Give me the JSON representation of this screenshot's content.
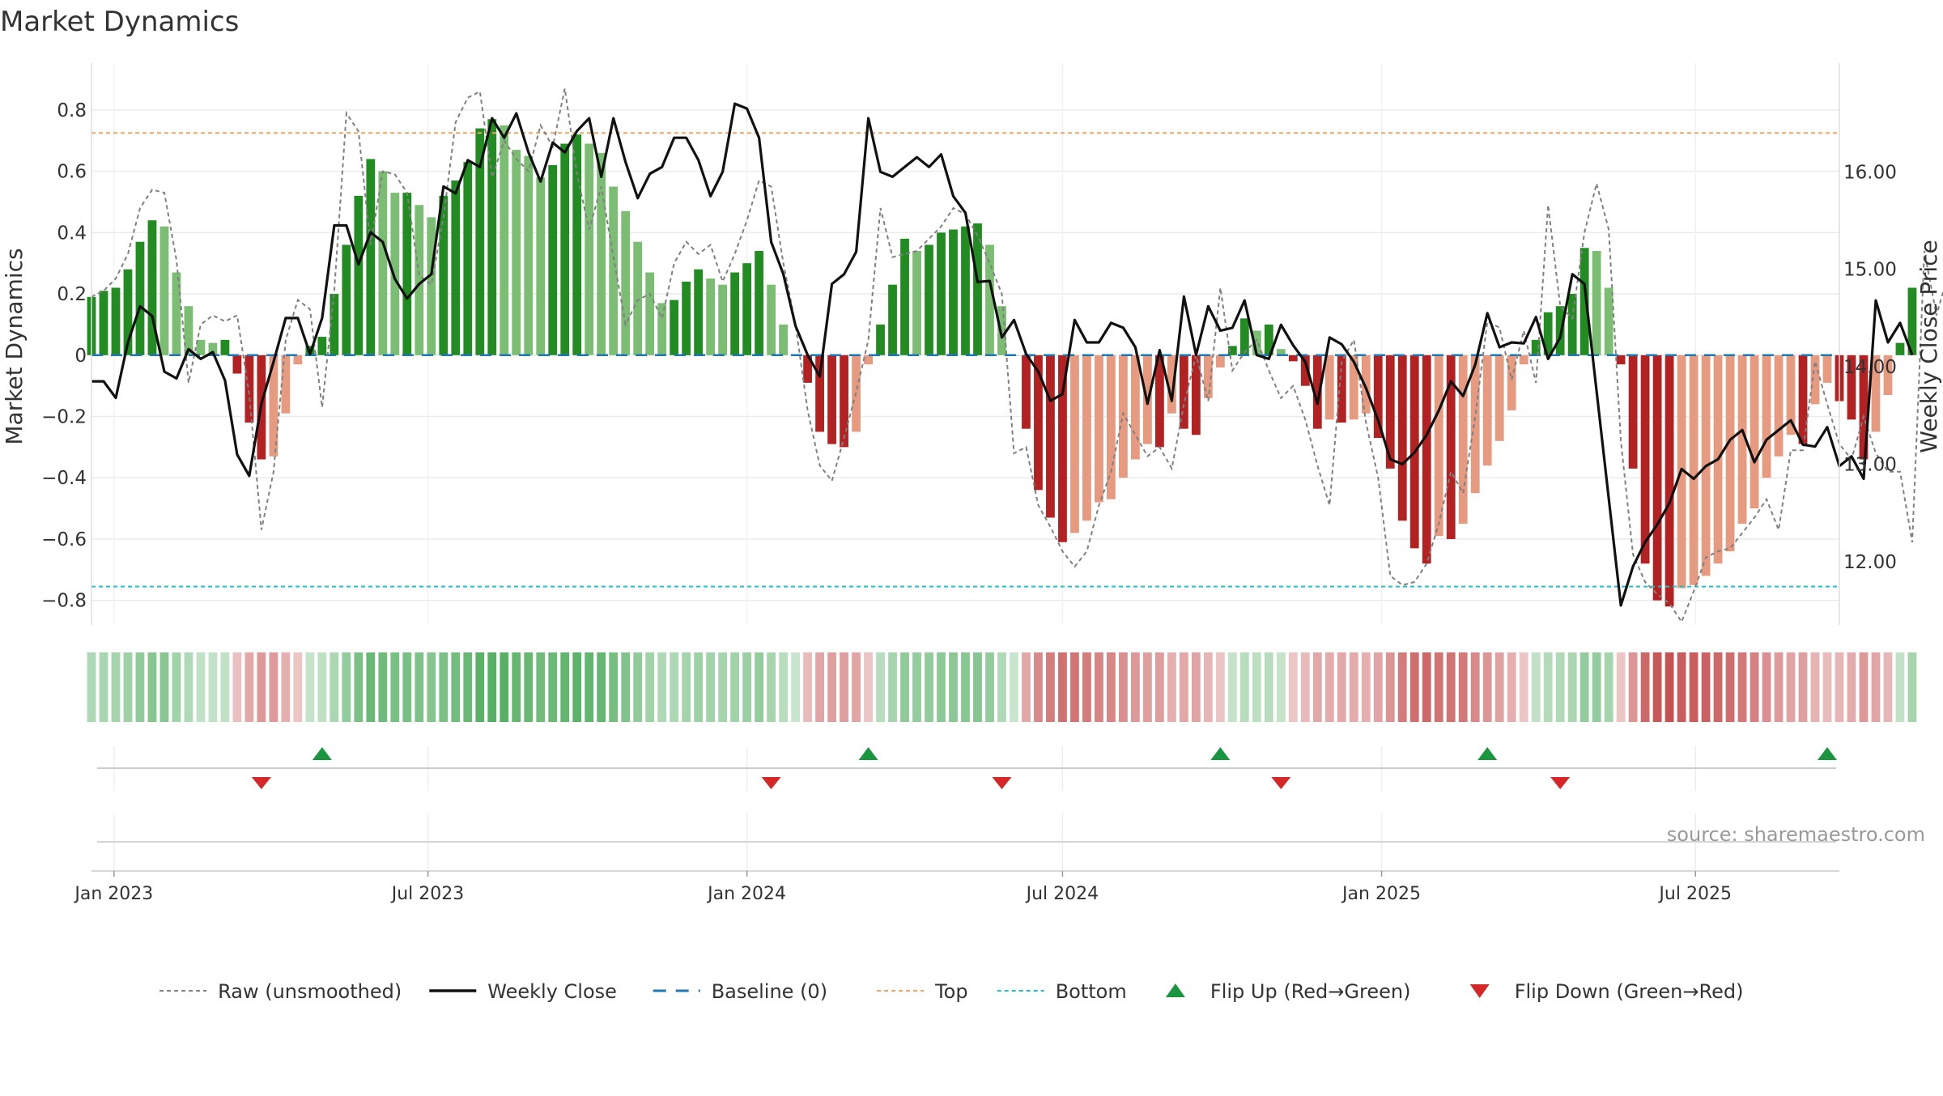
{
  "chart_data": {
    "type": "bar",
    "title": "Market Dynamics",
    "ylabel": "Market Dynamics",
    "y2label": "Weekly Close Price",
    "ylim": [
      -0.88,
      0.9
    ],
    "y2lim": [
      11.35,
      16.95
    ],
    "xlim": [
      "2022-12-19",
      "2025-09-22"
    ],
    "yticks": [
      -0.8,
      -0.6,
      -0.4,
      -0.2,
      0,
      0.2,
      0.4,
      0.6,
      0.8
    ],
    "yticklabels": [
      "−0.8",
      "−0.6",
      "−0.4",
      "−0.2",
      "0",
      "0.2",
      "0.4",
      "0.6",
      "0.8"
    ],
    "y2ticks": [
      12,
      13,
      14,
      15,
      16
    ],
    "y2ticklabels": [
      "12.00",
      "13.00",
      "14.00",
      "15.00",
      "16.00"
    ],
    "xticks": [
      "2023-01-01",
      "2023-07-01",
      "2024-01-01",
      "2024-07-01",
      "2025-01-01",
      "2025-07-01"
    ],
    "xticklabels": [
      "Jan 2023",
      "Jul 2023",
      "Jan 2024",
      "Jul 2024",
      "Jan 2025",
      "Jul 2025"
    ],
    "start_date": "2022-12-19",
    "top_level": 0.725,
    "bottom_level": -0.755,
    "baseline": 0,
    "grid": true,
    "legend_position": "bottom",
    "legend": [
      {
        "label": "Raw (unsmoothed)",
        "kind": "dashed-gray"
      },
      {
        "label": "Weekly Close",
        "kind": "solid-black"
      },
      {
        "label": "Baseline (0)",
        "kind": "dashed-blue"
      },
      {
        "label": "Top",
        "kind": "dashed-orange"
      },
      {
        "label": "Bottom",
        "kind": "dashed-cyan"
      },
      {
        "label": "Flip Up (Red→Green)",
        "kind": "triangle-up"
      },
      {
        "label": "Flip Down (Green→Red)",
        "kind": "triangle-down"
      }
    ],
    "source_note": "source: sharemaestro.com",
    "colors": {
      "strong_green": "#228b22",
      "weak_green": "#7cbd74",
      "strong_red": "#b22222",
      "weak_red": "#e69a80",
      "close_line": "#111111",
      "raw_line": "#808080",
      "baseline": "#1f77b4",
      "top": "#f4a460",
      "bottom": "#20c0c8",
      "flip_up": "#1a9641",
      "flip_down": "#d62728"
    },
    "values": [
      0.19,
      0.21,
      0.22,
      0.28,
      0.37,
      0.44,
      0.42,
      0.27,
      0.16,
      0.05,
      0.04,
      0.05,
      -0.06,
      -0.22,
      -0.34,
      -0.33,
      -0.19,
      -0.03,
      0.03,
      0.06,
      0.2,
      0.36,
      0.52,
      0.64,
      0.6,
      0.53,
      0.53,
      0.49,
      0.45,
      0.52,
      0.57,
      0.63,
      0.74,
      0.77,
      0.75,
      0.67,
      0.65,
      0.58,
      0.62,
      0.69,
      0.72,
      0.69,
      0.66,
      0.55,
      0.47,
      0.37,
      0.27,
      0.17,
      0.18,
      0.24,
      0.28,
      0.25,
      0.23,
      0.27,
      0.3,
      0.34,
      0.23,
      0.1,
      0.0,
      -0.09,
      -0.25,
      -0.29,
      -0.3,
      -0.25,
      -0.03,
      0.1,
      0.23,
      0.38,
      0.34,
      0.36,
      0.4,
      0.41,
      0.42,
      0.43,
      0.36,
      0.16,
      0.0,
      -0.24,
      -0.44,
      -0.53,
      -0.61,
      -0.58,
      -0.54,
      -0.48,
      -0.47,
      -0.4,
      -0.34,
      -0.29,
      -0.3,
      -0.19,
      -0.24,
      -0.26,
      -0.14,
      -0.04,
      0.03,
      0.12,
      0.08,
      0.1,
      0.02,
      -0.02,
      -0.1,
      -0.24,
      -0.21,
      -0.22,
      -0.21,
      -0.19,
      -0.27,
      -0.37,
      -0.54,
      -0.63,
      -0.68,
      -0.59,
      -0.6,
      -0.55,
      -0.45,
      -0.36,
      -0.28,
      -0.18,
      -0.03,
      0.05,
      0.14,
      0.16,
      0.2,
      0.35,
      0.34,
      0.22,
      -0.03,
      -0.37,
      -0.68,
      -0.8,
      -0.82,
      -0.76,
      -0.75,
      -0.72,
      -0.68,
      -0.64,
      -0.55,
      -0.5,
      -0.4,
      -0.33,
      -0.26,
      -0.29,
      -0.16,
      -0.09,
      -0.15,
      -0.21,
      -0.34,
      -0.25,
      -0.13,
      0.04,
      0.22
    ],
    "raw": [
      0.19,
      0.21,
      0.25,
      0.33,
      0.48,
      0.54,
      0.53,
      0.31,
      -0.09,
      0.1,
      0.13,
      0.11,
      0.13,
      -0.13,
      -0.57,
      -0.38,
      0.05,
      0.18,
      0.15,
      -0.17,
      0.21,
      0.79,
      0.73,
      0.36,
      0.6,
      0.59,
      0.53,
      0.26,
      0.23,
      0.45,
      0.76,
      0.84,
      0.86,
      0.58,
      0.7,
      0.64,
      0.6,
      0.75,
      0.68,
      0.87,
      0.59,
      0.41,
      0.55,
      0.32,
      0.1,
      0.18,
      0.2,
      0.12,
      0.3,
      0.37,
      0.33,
      0.36,
      0.24,
      0.33,
      0.44,
      0.57,
      0.55,
      0.3,
      0.1,
      -0.18,
      -0.36,
      -0.41,
      -0.27,
      -0.12,
      0.05,
      0.48,
      0.32,
      0.33,
      0.34,
      0.38,
      0.42,
      0.48,
      0.46,
      0.39,
      0.3,
      0.2,
      -0.32,
      -0.3,
      -0.49,
      -0.56,
      -0.64,
      -0.69,
      -0.64,
      -0.49,
      -0.38,
      -0.19,
      -0.26,
      -0.33,
      -0.3,
      -0.37,
      -0.16,
      0.0,
      -0.15,
      0.22,
      -0.05,
      0.01,
      0.05,
      -0.05,
      -0.14,
      -0.1,
      -0.21,
      -0.36,
      -0.49,
      -0.02,
      0.05,
      -0.22,
      -0.4,
      -0.72,
      -0.75,
      -0.74,
      -0.68,
      -0.55,
      -0.38,
      -0.45,
      -0.2,
      0.11,
      0.09,
      -0.08,
      0.08,
      -0.09,
      0.49,
      0.16,
      0.12,
      0.4,
      0.56,
      0.41,
      -0.28,
      -0.65,
      -0.74,
      -0.78,
      -0.81,
      -0.87,
      -0.77,
      -0.66,
      -0.64,
      -0.63,
      -0.58,
      -0.53,
      -0.47,
      -0.57,
      -0.31,
      -0.31,
      -0.02,
      -0.16,
      -0.29,
      -0.34,
      -0.2,
      -0.32,
      -0.38,
      -0.38,
      -0.61,
      0.34,
      0.13,
      0.27,
      0.22
    ],
    "close": [
      13.85,
      13.85,
      13.68,
      14.25,
      14.62,
      14.52,
      13.95,
      13.88,
      14.18,
      14.08,
      14.15,
      13.86,
      13.1,
      12.88,
      13.62,
      14.05,
      14.5,
      14.5,
      14.13,
      14.5,
      15.45,
      15.45,
      15.05,
      15.38,
      15.28,
      14.9,
      14.7,
      14.85,
      14.95,
      15.85,
      15.78,
      16.12,
      16.05,
      16.55,
      16.35,
      16.6,
      16.2,
      15.9,
      16.3,
      16.2,
      16.42,
      16.55,
      15.95,
      16.55,
      16.1,
      15.73,
      15.98,
      16.05,
      16.35,
      16.35,
      16.12,
      15.75,
      16.0,
      16.7,
      16.65,
      16.35,
      15.28,
      14.95,
      14.42,
      14.12,
      13.9,
      14.85,
      14.95,
      15.18,
      16.55,
      16.0,
      15.95,
      16.05,
      16.15,
      16.05,
      16.18,
      15.75,
      15.58,
      14.87,
      14.88,
      14.3,
      14.48,
      14.13,
      13.95,
      13.65,
      13.72,
      14.48,
      14.25,
      14.25,
      14.45,
      14.4,
      14.2,
      13.62,
      14.17,
      13.65,
      14.72,
      14.12,
      14.62,
      14.37,
      14.4,
      14.68,
      14.12,
      14.08,
      14.43,
      14.22,
      14.05,
      13.62,
      14.3,
      14.23,
      14.05,
      13.78,
      13.45,
      13.05,
      13.0,
      13.12,
      13.3,
      13.55,
      13.85,
      13.7,
      14.02,
      14.55,
      14.2,
      14.25,
      14.24,
      14.51,
      14.08,
      14.3,
      14.95,
      14.85,
      13.75,
      12.65,
      11.55,
      11.95,
      12.2,
      12.38,
      12.6,
      12.95,
      12.85,
      12.98,
      13.05,
      13.25,
      13.35,
      13.02,
      13.25,
      13.35,
      13.45,
      13.2,
      13.18,
      13.38,
      12.98,
      13.08,
      12.85,
      14.68,
      14.25,
      14.45,
      14.12
    ],
    "flip_up_dates": [
      "2023-05-01",
      "2024-03-11",
      "2024-09-30",
      "2025-03-03",
      "2025-09-15"
    ],
    "flip_down_dates": [
      "2023-03-27",
      "2024-01-15",
      "2024-05-27",
      "2024-11-04",
      "2025-04-14"
    ]
  }
}
